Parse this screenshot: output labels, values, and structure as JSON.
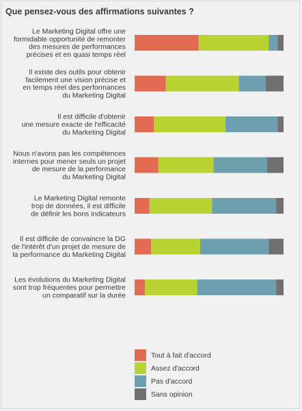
{
  "title": "Que pensez-vous des affirmations suivantes ?",
  "chart_data": {
    "type": "bar",
    "orientation": "horizontal",
    "stacked": true,
    "normalized_percent": true,
    "categories": [
      [
        "Le Marketing Digital offre une",
        "formidable opportunité de remonter",
        "des mesures de performances",
        "précises et en quasi temps réel"
      ],
      [
        "Il existe des outils pour obtenir",
        "facilement une vision précise et",
        "en temps réel des performances",
        "du Marketing Digital"
      ],
      [
        "Il est difficile d'obtenir",
        "une mesure exacte de l'efficacité",
        "du Marketing Digital"
      ],
      [
        "Nous n'avons pas les compétences",
        "internes pour mener seuls un projet",
        "de mesure de la performance",
        "du Marketing Digital"
      ],
      [
        "Le Marketing Digital remonte",
        "trop de données, il est difficile",
        "de définir les bons indicateurs"
      ],
      [
        "Il est difficile de convaincre la DG",
        "de l'intérêt d'un projet de mesure de",
        "la performance du Marketing Digital"
      ],
      [
        "Les évolutions du Marketing Digital",
        "sont trop fréquentes pour permettre",
        "un comparatif sur la durée"
      ]
    ],
    "series": [
      {
        "name": "Tout à fait d'accord",
        "color": "#e36b54",
        "values": [
          43,
          21,
          13,
          16,
          10,
          11,
          7
        ]
      },
      {
        "name": "Assez d'accord",
        "color": "#b9d432",
        "values": [
          47,
          49,
          48,
          37,
          42,
          33,
          35
        ]
      },
      {
        "name": "Pas d'accord",
        "color": "#6e9fae",
        "values": [
          6,
          18,
          35,
          36,
          43,
          46,
          53
        ]
      },
      {
        "name": "Sans opinion",
        "color": "#707070",
        "values": [
          4,
          12,
          4,
          11,
          5,
          10,
          5
        ]
      }
    ],
    "xlim": [
      0,
      100
    ],
    "legend_position": "bottom",
    "grid": false
  }
}
